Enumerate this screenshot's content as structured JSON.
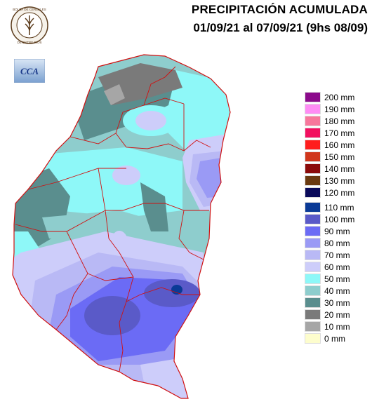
{
  "header": {
    "title": "PRECIPITACIÓN ACUMULADA",
    "period": "01/09/21 al 07/09/21 (9hs 08/09)"
  },
  "logos": {
    "seal_text": "BOLSA DE CEREALES DE ENTRE RIOS",
    "cca_text": "CCA"
  },
  "legend": {
    "items": [
      {
        "label": "200 mm",
        "color": "#8b0a8b"
      },
      {
        "label": "190 mm",
        "color": "#ff8cf5"
      },
      {
        "label": "180 mm",
        "color": "#f7779c"
      },
      {
        "label": "170 mm",
        "color": "#f20f5f"
      },
      {
        "label": "160 mm",
        "color": "#ff1e1e"
      },
      {
        "label": "150 mm",
        "color": "#d0361c"
      },
      {
        "label": "140 mm",
        "color": "#8b0a0a"
      },
      {
        "label": "130 mm",
        "color": "#6a3a10"
      },
      {
        "label": "120 mm",
        "color": "#0a0a5a"
      },
      {
        "label": "110 mm",
        "color": "#0a3a96"
      },
      {
        "label": "100 mm",
        "color": "#5a5ac8"
      },
      {
        "label": "90 mm",
        "color": "#6b6bf5"
      },
      {
        "label": "80 mm",
        "color": "#9a9af5"
      },
      {
        "label": "70 mm",
        "color": "#b9b9f5"
      },
      {
        "label": "60 mm",
        "color": "#cdcdfa"
      },
      {
        "label": "50 mm",
        "color": "#8ef8f8"
      },
      {
        "label": "40 mm",
        "color": "#8ecdcd"
      },
      {
        "label": "30 mm",
        "color": "#5a8e8e"
      },
      {
        "label": "20 mm",
        "color": "#7a7a7a"
      },
      {
        "label": "10 mm",
        "color": "#a6a6a6"
      },
      {
        "label": "0 mm",
        "color": "#fdfdcd"
      }
    ]
  },
  "map_colors": {
    "light_yellow": "#fdfdcd",
    "gray_dark": "#7a7a7a",
    "gray_light": "#a6a6a6",
    "teal_dark": "#5a8e8e",
    "teal_light": "#8ecdcd",
    "cyan": "#8ef8f8",
    "lavender": "#cdcdfa",
    "light_purple": "#b9b9f5",
    "purple": "#9a9af5",
    "blue": "#6b6bf5",
    "indigo": "#5a5ac8",
    "navy": "#0a3a96",
    "border_red": "#d01010"
  }
}
